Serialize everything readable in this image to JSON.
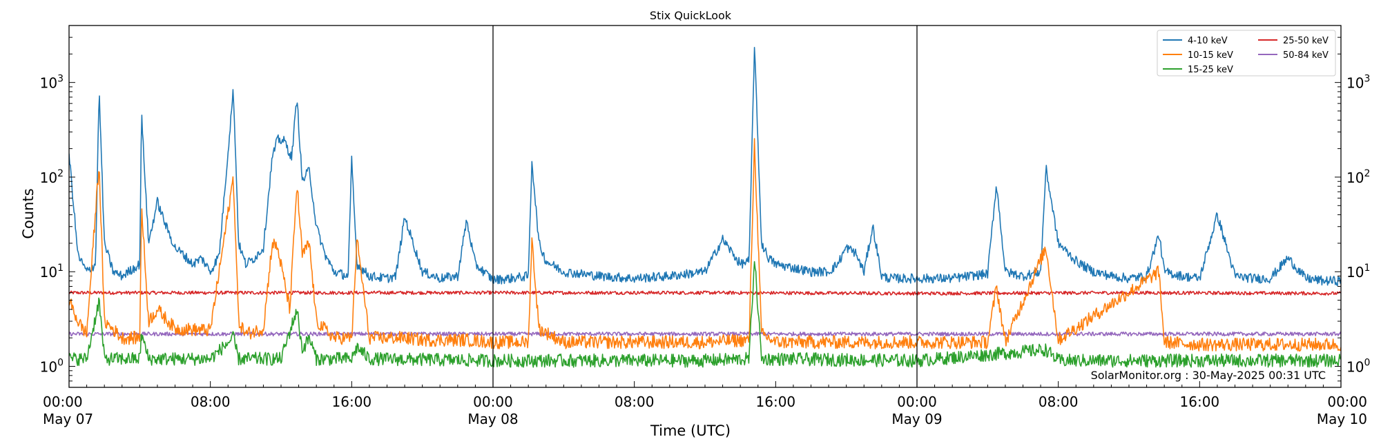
{
  "chart_data": {
    "type": "line",
    "title": "Stix QuickLook",
    "xlabel": "Time (UTC)",
    "ylabel": "Counts",
    "yscale": "log",
    "ylim": [
      0.6,
      4000
    ],
    "xlim": [
      0,
      72
    ],
    "x_unit": "hours since May 07 00:00 UTC",
    "x_ticks": [
      {
        "hour": 0,
        "label": "00:00",
        "date": "May 07"
      },
      {
        "hour": 8,
        "label": "08:00",
        "date": ""
      },
      {
        "hour": 16,
        "label": "16:00",
        "date": ""
      },
      {
        "hour": 24,
        "label": "00:00",
        "date": "May 08"
      },
      {
        "hour": 32,
        "label": "08:00",
        "date": ""
      },
      {
        "hour": 40,
        "label": "16:00",
        "date": ""
      },
      {
        "hour": 48,
        "label": "00:00",
        "date": "May 09"
      },
      {
        "hour": 56,
        "label": "08:00",
        "date": ""
      },
      {
        "hour": 64,
        "label": "16:00",
        "date": ""
      },
      {
        "hour": 72,
        "label": "00:00",
        "date": "May 10"
      }
    ],
    "day_boundaries": [
      24,
      48
    ],
    "y_ticks": [
      1,
      10,
      100,
      1000
    ],
    "legend_placement": "top-right",
    "grid": false,
    "annotation": "SolarMonitor.org : 30-May-2025 00:31 UTC",
    "series": [
      {
        "name": "4-10 keV",
        "color": "#1f77b4",
        "x": [
          0,
          0.5,
          1,
          1.5,
          1.7,
          2,
          2.5,
          3,
          4,
          4.1,
          4.5,
          5,
          5.5,
          6,
          6.5,
          7,
          7.5,
          8,
          8.5,
          9.3,
          9.6,
          10,
          10.5,
          11,
          11.5,
          11.8,
          12.2,
          12.6,
          12.9,
          13.2,
          13.6,
          14,
          14.5,
          15,
          15.8,
          16,
          16.3,
          17,
          18,
          18.5,
          19,
          20,
          21,
          22,
          22.5,
          23,
          24,
          25,
          26,
          26.2,
          26.6,
          27,
          28,
          30,
          32,
          34,
          36,
          37,
          38,
          38.5,
          38.8,
          39.2,
          39.6,
          40,
          41,
          42,
          43,
          43.5,
          44,
          44.5,
          45,
          45.5,
          46,
          46.5,
          48,
          50,
          51,
          52,
          52.5,
          53,
          54,
          55,
          55.3,
          56,
          57,
          57.6,
          58,
          59,
          60,
          61,
          61.7,
          62,
          63,
          64,
          65,
          66,
          67,
          68,
          69,
          70,
          71,
          72
        ],
        "values": [
          180,
          15,
          10,
          12,
          850,
          20,
          10,
          9,
          12,
          480,
          20,
          55,
          30,
          18,
          15,
          12,
          14,
          10,
          15,
          850,
          20,
          12,
          14,
          18,
          160,
          250,
          240,
          160,
          700,
          90,
          120,
          30,
          15,
          10,
          9,
          150,
          12,
          9,
          8.5,
          9,
          38,
          10,
          8.5,
          9,
          35,
          12,
          8.2,
          8.5,
          9,
          150,
          20,
          13,
          10,
          9,
          8.5,
          9,
          10,
          22,
          12,
          13,
          2500,
          20,
          14,
          12,
          11,
          10,
          10,
          12,
          18,
          16,
          10,
          30,
          9,
          8.5,
          8.5,
          8.5,
          9,
          9.5,
          85,
          10,
          9,
          10,
          125,
          20,
          13,
          11,
          10,
          9,
          8.5,
          9,
          25,
          10,
          9,
          8.5,
          40,
          9,
          8.5,
          8.5,
          14,
          8.5,
          8,
          8
        ]
      },
      {
        "name": "10-15 keV",
        "color": "#ff7f0e",
        "x": [
          0,
          0.5,
          1,
          1.7,
          2,
          3,
          4,
          4.1,
          4.5,
          5,
          6,
          8,
          9.3,
          9.6,
          10,
          11,
          11.5,
          11.8,
          12.5,
          12.9,
          13.2,
          13.6,
          14,
          15,
          16,
          16.3,
          17,
          19,
          20,
          22.5,
          24,
          26,
          26.2,
          26.6,
          28,
          32,
          36,
          38.5,
          38.8,
          39.2,
          40,
          44,
          48,
          52,
          52.5,
          53,
          55.3,
          56,
          61.7,
          62,
          64,
          66,
          68,
          72
        ],
        "values": [
          5,
          3,
          2.2,
          140,
          3,
          2,
          2,
          50,
          3,
          4,
          2.5,
          2.4,
          100,
          3,
          2.2,
          2.5,
          20,
          18,
          4,
          85,
          15,
          20,
          3,
          2,
          2,
          22,
          2,
          2,
          1.9,
          1.9,
          1.8,
          1.8,
          22,
          2.5,
          1.8,
          1.8,
          1.8,
          1.9,
          230,
          2.2,
          1.8,
          1.8,
          1.8,
          1.8,
          7,
          1.8,
          18,
          1.9,
          10,
          1.8,
          1.7,
          1.7,
          1.7,
          1.7
        ]
      },
      {
        "name": "15-25 keV",
        "color": "#2ca02c",
        "x": [
          0,
          1,
          1.7,
          2,
          4,
          4.1,
          4.5,
          8,
          9.3,
          9.6,
          12,
          12.9,
          13.2,
          13.6,
          14,
          16,
          16.3,
          17,
          24,
          36,
          38.5,
          38.8,
          39.2,
          48,
          55.3,
          56,
          72
        ],
        "values": [
          1.2,
          1.2,
          5,
          1.2,
          1.2,
          2.2,
          1.2,
          1.2,
          2,
          1.2,
          1.2,
          4,
          1.5,
          2,
          1.2,
          1.2,
          1.6,
          1.2,
          1.15,
          1.15,
          1.2,
          14,
          1.2,
          1.15,
          1.5,
          1.15,
          1.15
        ]
      },
      {
        "name": "25-50 keV",
        "color": "#d62728",
        "x": [
          0,
          12,
          24,
          36,
          48,
          60,
          72
        ],
        "values": [
          6.0,
          6.0,
          6.0,
          6.0,
          5.9,
          6.0,
          5.9
        ]
      },
      {
        "name": "50-84 keV",
        "color": "#9467bd",
        "x": [
          0,
          12,
          24,
          36,
          48,
          60,
          72
        ],
        "values": [
          2.2,
          2.2,
          2.2,
          2.2,
          2.2,
          2.2,
          2.2
        ]
      }
    ]
  }
}
